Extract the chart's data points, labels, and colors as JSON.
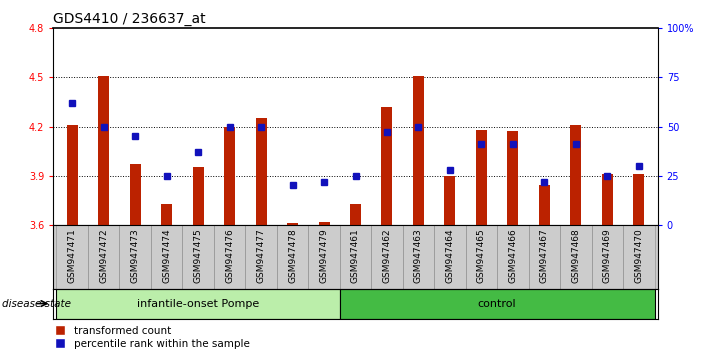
{
  "title": "GDS4410 / 236637_at",
  "samples": [
    "GSM947471",
    "GSM947472",
    "GSM947473",
    "GSM947474",
    "GSM947475",
    "GSM947476",
    "GSM947477",
    "GSM947478",
    "GSM947479",
    "GSM947461",
    "GSM947462",
    "GSM947463",
    "GSM947464",
    "GSM947465",
    "GSM947466",
    "GSM947467",
    "GSM947468",
    "GSM947469",
    "GSM947470"
  ],
  "red_values": [
    4.21,
    4.51,
    3.97,
    3.73,
    3.95,
    4.2,
    4.25,
    3.61,
    3.62,
    3.73,
    4.32,
    4.51,
    3.9,
    4.18,
    4.17,
    3.84,
    4.21,
    3.91,
    3.91
  ],
  "blue_pct": [
    62,
    50,
    45,
    25,
    37,
    50,
    50,
    20,
    22,
    25,
    47,
    50,
    28,
    41,
    41,
    22,
    41,
    25,
    30
  ],
  "ylim_left": [
    3.6,
    4.8
  ],
  "ylim_right": [
    0,
    100
  ],
  "yticks_left": [
    3.6,
    3.9,
    4.2,
    4.5,
    4.8
  ],
  "yticks_right": [
    0,
    25,
    50,
    75,
    100
  ],
  "ytick_labels_right": [
    "0",
    "25",
    "50",
    "75",
    "100%"
  ],
  "bar_color": "#bb2200",
  "blue_color": "#1111bb",
  "bar_width": 0.35,
  "group1_color": "#bbeeaa",
  "group2_color": "#44bb44",
  "title_fontsize": 10,
  "tick_fontsize": 7,
  "label_fontsize": 6.5,
  "legend_labels": [
    "transformed count",
    "percentile rank within the sample"
  ],
  "groups": [
    {
      "label": "infantile-onset Pompe",
      "start": 0,
      "end": 9
    },
    {
      "label": "control",
      "start": 9,
      "end": 19
    }
  ]
}
